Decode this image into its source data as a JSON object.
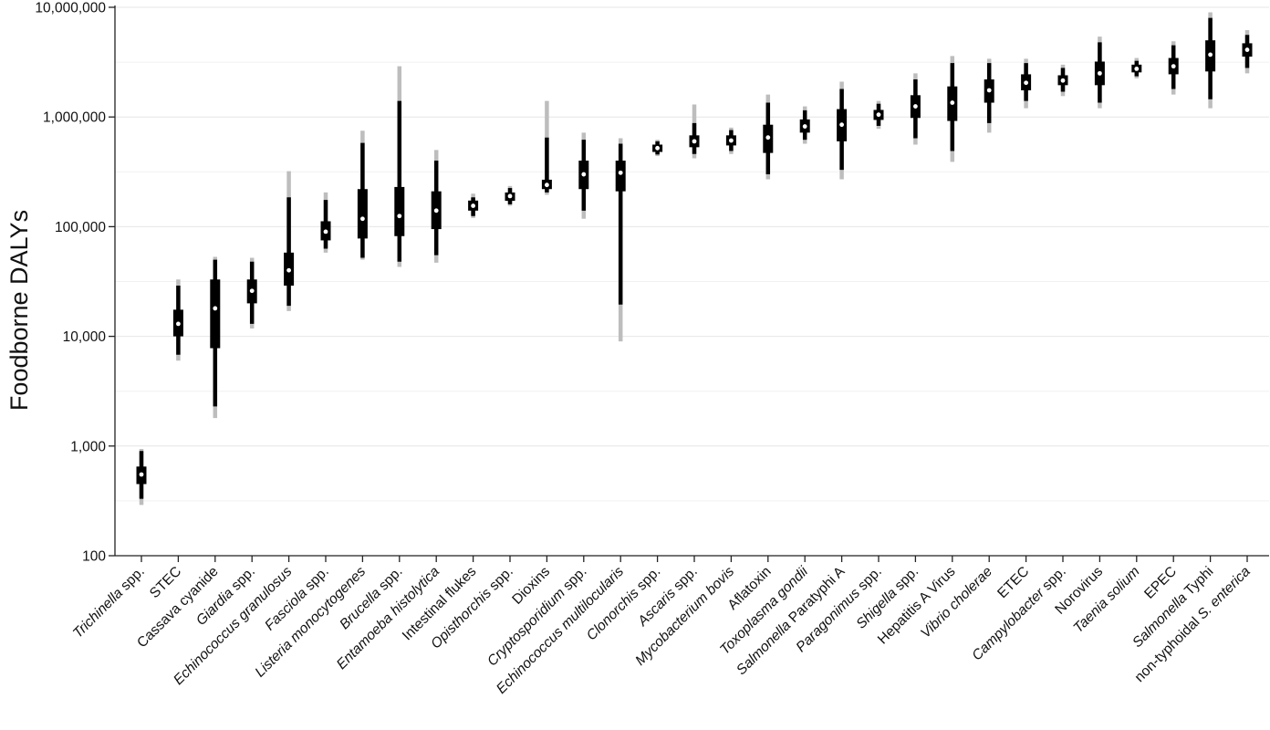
{
  "chart_data": {
    "type": "interval",
    "title": "",
    "xlabel": "",
    "ylabel": "Foodborne DALYs",
    "yscale": "log",
    "ylim": [
      100,
      10000000
    ],
    "yticks": [
      100,
      1000,
      10000,
      100000,
      1000000,
      10000000
    ],
    "ytick_labels": [
      "100",
      "1,000",
      "10,000",
      "100,000",
      "1,000,000",
      "10,000,000"
    ],
    "grid": "horizontal",
    "categories": [
      {
        "parts": [
          {
            "t": "Trichinella",
            "i": true
          },
          {
            "t": " spp.",
            "i": false
          }
        ]
      },
      {
        "parts": [
          {
            "t": "STEC",
            "i": false
          }
        ]
      },
      {
        "parts": [
          {
            "t": "Cassava cyanide",
            "i": false
          }
        ]
      },
      {
        "parts": [
          {
            "t": "Giardia",
            "i": true
          },
          {
            "t": " spp.",
            "i": false
          }
        ]
      },
      {
        "parts": [
          {
            "t": "Echinococcus granulosus",
            "i": true
          }
        ]
      },
      {
        "parts": [
          {
            "t": "Fasciola",
            "i": true
          },
          {
            "t": " spp.",
            "i": false
          }
        ]
      },
      {
        "parts": [
          {
            "t": "Listeria monocytogenes",
            "i": true
          }
        ]
      },
      {
        "parts": [
          {
            "t": "Brucella",
            "i": true
          },
          {
            "t": " spp.",
            "i": false
          }
        ]
      },
      {
        "parts": [
          {
            "t": "Entamoeba histolytica",
            "i": true
          }
        ]
      },
      {
        "parts": [
          {
            "t": "Intestinal flukes",
            "i": false
          }
        ]
      },
      {
        "parts": [
          {
            "t": "Opisthorchis",
            "i": true
          },
          {
            "t": " spp.",
            "i": false
          }
        ]
      },
      {
        "parts": [
          {
            "t": "Dioxins",
            "i": false
          }
        ]
      },
      {
        "parts": [
          {
            "t": "Cryptosporidium",
            "i": true
          },
          {
            "t": " spp.",
            "i": false
          }
        ]
      },
      {
        "parts": [
          {
            "t": "Echinococcus multilocularis",
            "i": true
          }
        ]
      },
      {
        "parts": [
          {
            "t": "Clonorchis",
            "i": true
          },
          {
            "t": " spp.",
            "i": false
          }
        ]
      },
      {
        "parts": [
          {
            "t": "Ascaris",
            "i": true
          },
          {
            "t": " spp.",
            "i": false
          }
        ]
      },
      {
        "parts": [
          {
            "t": "Mycobacterium bovis",
            "i": true
          }
        ]
      },
      {
        "parts": [
          {
            "t": "Aflatoxin",
            "i": false
          }
        ]
      },
      {
        "parts": [
          {
            "t": "Toxoplasma gondii",
            "i": true
          }
        ]
      },
      {
        "parts": [
          {
            "t": "Salmonella",
            "i": true
          },
          {
            "t": " Paratyphi A",
            "i": false
          }
        ]
      },
      {
        "parts": [
          {
            "t": "Paragonimus",
            "i": true
          },
          {
            "t": " spp.",
            "i": false
          }
        ]
      },
      {
        "parts": [
          {
            "t": "Shigella",
            "i": true
          },
          {
            "t": " spp.",
            "i": false
          }
        ]
      },
      {
        "parts": [
          {
            "t": "Hepatitis A Virus",
            "i": false
          }
        ]
      },
      {
        "parts": [
          {
            "t": "Vibrio cholerae",
            "i": true
          }
        ]
      },
      {
        "parts": [
          {
            "t": "ETEC",
            "i": false
          }
        ]
      },
      {
        "parts": [
          {
            "t": "Campylobacter",
            "i": true
          },
          {
            "t": " spp.",
            "i": false
          }
        ]
      },
      {
        "parts": [
          {
            "t": "Norovirus",
            "i": false
          }
        ]
      },
      {
        "parts": [
          {
            "t": "Taenia solium",
            "i": true
          }
        ]
      },
      {
        "parts": [
          {
            "t": "EPEC",
            "i": false
          }
        ]
      },
      {
        "parts": [
          {
            "t": "Salmonella",
            "i": true
          },
          {
            "t": " Typhi",
            "i": false
          }
        ]
      },
      {
        "parts": [
          {
            "t": "non-typhoidal  ",
            "i": false
          },
          {
            "t": "S. enterica",
            "i": true
          }
        ]
      }
    ],
    "series": [
      {
        "median": 550,
        "ci50": [
          450,
          650
        ],
        "ci90": [
          330,
          900
        ],
        "ci95": [
          290,
          940
        ]
      },
      {
        "median": 13000,
        "ci50": [
          10000,
          17500
        ],
        "ci90": [
          6800,
          29000
        ],
        "ci95": [
          6000,
          33000
        ]
      },
      {
        "median": 18000,
        "ci50": [
          7800,
          33000
        ],
        "ci90": [
          2300,
          50000
        ],
        "ci95": [
          1800,
          53000
        ]
      },
      {
        "median": 26000,
        "ci50": [
          20000,
          33000
        ],
        "ci90": [
          13000,
          48000
        ],
        "ci95": [
          11800,
          52000
        ]
      },
      {
        "median": 40000,
        "ci50": [
          29000,
          58000
        ],
        "ci90": [
          19000,
          185000
        ],
        "ci95": [
          17000,
          320000
        ]
      },
      {
        "median": 90000,
        "ci50": [
          75000,
          112000
        ],
        "ci90": [
          63000,
          175000
        ],
        "ci95": [
          58000,
          205000
        ]
      },
      {
        "median": 118000,
        "ci50": [
          78000,
          220000
        ],
        "ci90": [
          52000,
          580000
        ],
        "ci95": [
          50000,
          750000
        ]
      },
      {
        "median": 125000,
        "ci50": [
          82000,
          230000
        ],
        "ci90": [
          48000,
          1400000
        ],
        "ci95": [
          43000,
          2900000
        ]
      },
      {
        "median": 140000,
        "ci50": [
          95000,
          210000
        ],
        "ci90": [
          55000,
          400000
        ],
        "ci95": [
          47000,
          500000
        ]
      },
      {
        "median": 155000,
        "ci50": [
          140000,
          173000
        ],
        "ci90": [
          125000,
          185000
        ],
        "ci95": [
          120000,
          200000
        ]
      },
      {
        "median": 190000,
        "ci50": [
          172000,
          205000
        ],
        "ci90": [
          160000,
          225000
        ],
        "ci95": [
          155000,
          235000
        ]
      },
      {
        "median": 240000,
        "ci50": [
          220000,
          268000
        ],
        "ci90": [
          205000,
          650000
        ],
        "ci95": [
          195000,
          1400000
        ]
      },
      {
        "median": 300000,
        "ci50": [
          220000,
          400000
        ],
        "ci90": [
          140000,
          620000
        ],
        "ci95": [
          118000,
          720000
        ]
      },
      {
        "median": 310000,
        "ci50": [
          210000,
          400000
        ],
        "ci90": [
          19500,
          570000
        ],
        "ci95": [
          9000,
          640000
        ]
      },
      {
        "median": 520000,
        "ci50": [
          480000,
          560000
        ],
        "ci90": [
          455000,
          600000
        ],
        "ci95": [
          440000,
          620000
        ]
      },
      {
        "median": 600000,
        "ci50": [
          530000,
          680000
        ],
        "ci90": [
          460000,
          880000
        ],
        "ci95": [
          420000,
          1300000
        ]
      },
      {
        "median": 610000,
        "ci50": [
          550000,
          680000
        ],
        "ci90": [
          490000,
          760000
        ],
        "ci95": [
          460000,
          800000
        ]
      },
      {
        "median": 650000,
        "ci50": [
          470000,
          850000
        ],
        "ci90": [
          300000,
          1350000
        ],
        "ci95": [
          270000,
          1600000
        ]
      },
      {
        "median": 820000,
        "ci50": [
          720000,
          950000
        ],
        "ci90": [
          620000,
          1150000
        ],
        "ci95": [
          570000,
          1250000
        ]
      },
      {
        "median": 850000,
        "ci50": [
          600000,
          1180000
        ],
        "ci90": [
          330000,
          1800000
        ],
        "ci95": [
          270000,
          2100000
        ]
      },
      {
        "median": 1050000,
        "ci50": [
          940000,
          1160000
        ],
        "ci90": [
          830000,
          1320000
        ],
        "ci95": [
          780000,
          1400000
        ]
      },
      {
        "median": 1250000,
        "ci50": [
          980000,
          1580000
        ],
        "ci90": [
          640000,
          2200000
        ],
        "ci95": [
          560000,
          2500000
        ]
      },
      {
        "median": 1350000,
        "ci50": [
          920000,
          1900000
        ],
        "ci90": [
          490000,
          3100000
        ],
        "ci95": [
          390000,
          3600000
        ]
      },
      {
        "median": 1750000,
        "ci50": [
          1350000,
          2200000
        ],
        "ci90": [
          880000,
          3100000
        ],
        "ci95": [
          720000,
          3400000
        ]
      },
      {
        "median": 2050000,
        "ci50": [
          1750000,
          2450000
        ],
        "ci90": [
          1400000,
          3100000
        ],
        "ci95": [
          1200000,
          3400000
        ]
      },
      {
        "median": 2150000,
        "ci50": [
          1950000,
          2400000
        ],
        "ci90": [
          1700000,
          2800000
        ],
        "ci95": [
          1550000,
          3000000
        ]
      },
      {
        "median": 2500000,
        "ci50": [
          1950000,
          3200000
        ],
        "ci90": [
          1350000,
          4800000
        ],
        "ci95": [
          1200000,
          5400000
        ]
      },
      {
        "median": 2750000,
        "ci50": [
          2550000,
          3000000
        ],
        "ci90": [
          2350000,
          3250000
        ],
        "ci95": [
          2250000,
          3450000
        ]
      },
      {
        "median": 2900000,
        "ci50": [
          2450000,
          3450000
        ],
        "ci90": [
          1800000,
          4500000
        ],
        "ci95": [
          1600000,
          4900000
        ]
      },
      {
        "median": 3700000,
        "ci50": [
          2600000,
          5000000
        ],
        "ci90": [
          1450000,
          8000000
        ],
        "ci95": [
          1200000,
          9000000
        ]
      },
      {
        "median": 4100000,
        "ci50": [
          3550000,
          4700000
        ],
        "ci90": [
          2800000,
          5600000
        ],
        "ci95": [
          2500000,
          6200000
        ]
      }
    ],
    "colors": {
      "ci95": "#bdbdbd",
      "ci90": "#000000",
      "ci50": "#000000",
      "median": "#ffffff",
      "grid": "#e6e6e6",
      "axis": "#222222"
    }
  }
}
